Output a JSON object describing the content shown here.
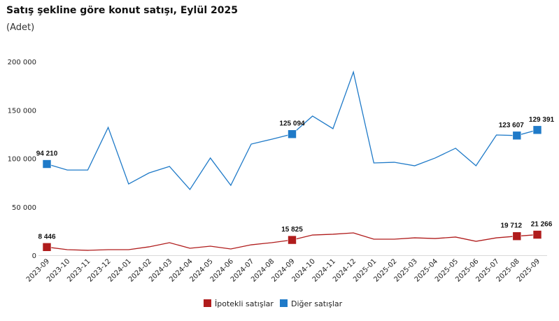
{
  "chart_data": {
    "type": "line",
    "title": "Satış şekline göre konut satışı, Eylül 2025",
    "subtitle": "(Adet)",
    "xlabel": "",
    "ylabel": "",
    "ylim": [
      0,
      200000
    ],
    "yticks": [
      0,
      50000,
      100000,
      150000,
      200000
    ],
    "ytick_labels": [
      "0",
      "50 000",
      "100 000",
      "150 000",
      "200 000"
    ],
    "x": [
      "2023-09",
      "2023-10",
      "2023-11",
      "2023-12",
      "2024-01",
      "2024-02",
      "2024-03",
      "2024-04",
      "2024-05",
      "2024-06",
      "2024-07",
      "2024-08",
      "2024-09",
      "2024-10",
      "2024-11",
      "2024-12",
      "2025-01",
      "2025-02",
      "2025-03",
      "2025-04",
      "2025-05",
      "2025-06",
      "2025-07",
      "2025-08",
      "2025-09"
    ],
    "legend_position": "bottom",
    "grid": false,
    "series": [
      {
        "name": "İpotekli satışlar",
        "color": "#b01c1c",
        "values": [
          8446,
          5800,
          5100,
          5800,
          5800,
          8700,
          13000,
          7200,
          9400,
          6500,
          10800,
          13000,
          15825,
          20900,
          21700,
          23100,
          16600,
          16600,
          18000,
          17300,
          18800,
          14400,
          18000,
          19712,
          21266
        ],
        "labeled_points": {
          "0": "8 446",
          "12": "15 825",
          "23": "19 712",
          "24": "21 266"
        }
      },
      {
        "name": "Diğer satışlar",
        "color": "#1f7ac8",
        "values": [
          94210,
          88000,
          88000,
          132000,
          73600,
          85000,
          91700,
          67900,
          100400,
          72200,
          114800,
          119800,
          125094,
          143700,
          130700,
          189200,
          95300,
          96000,
          92400,
          100400,
          110500,
          92400,
          124200,
          123607,
          129391
        ],
        "labeled_points": {
          "0": "94 210",
          "12": "125 094",
          "23": "123 607",
          "24": "129 391"
        }
      }
    ]
  }
}
